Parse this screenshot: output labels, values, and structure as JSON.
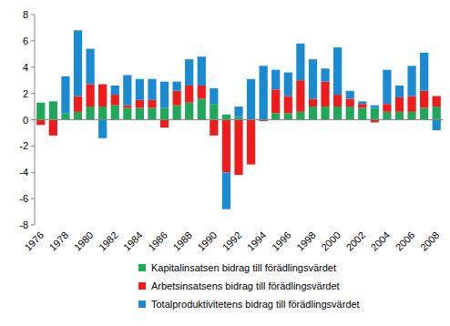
{
  "chart_data": {
    "type": "bar",
    "stacked": true,
    "grid": false,
    "legend": "bottom",
    "categories": [
      "1976",
      null,
      "1978",
      null,
      "1980",
      null,
      "1982",
      null,
      "1984",
      null,
      "1986",
      null,
      "1988",
      null,
      "1990",
      null,
      "1992",
      null,
      "1994",
      null,
      "1996",
      null,
      "1998",
      null,
      "2000",
      null,
      "2002",
      null,
      "2004",
      null,
      "2006",
      null,
      "2008"
    ],
    "ylim": [
      -8,
      8
    ],
    "yticks": [
      -8,
      -6,
      -4,
      -2,
      0,
      2,
      4,
      6,
      8
    ],
    "series": [
      {
        "name": "Kapitalinsatsen bidrag till förädlingsvärdet",
        "color": "#1fa85a",
        "values": [
          1.3,
          1.4,
          0.5,
          0.6,
          1.0,
          1.0,
          1.1,
          0.9,
          0.9,
          0.9,
          0.9,
          1.1,
          1.3,
          1.6,
          1.2,
          0.4,
          0.2,
          0,
          0,
          0.5,
          0.5,
          0.6,
          1.0,
          1.0,
          1.0,
          1.0,
          0.9,
          0.9,
          0.6,
          0.6,
          0.6,
          0.9,
          1.0
        ]
      },
      {
        "name": "Arbetsinsatsens bidrag till förädlingsvärdet",
        "color": "#ee1c1c",
        "values": [
          -0.4,
          -1.2,
          0,
          1.2,
          1.7,
          1.7,
          0.8,
          0.2,
          0.6,
          0.6,
          -0.6,
          1.1,
          1.3,
          1.0,
          -1.2,
          -4.0,
          -4.2,
          -3.4,
          -0.1,
          1.8,
          1.3,
          2.4,
          0.6,
          1.9,
          0.9,
          0.6,
          0.3,
          -0.2,
          0.6,
          1.1,
          1.2,
          1.3,
          0.8
        ]
      },
      {
        "name": "Totalproduktivitetens bidrag till förädlingsvärdet",
        "color": "#1a8bd1",
        "values": [
          0,
          0,
          2.8,
          5.0,
          2.7,
          -1.4,
          0.7,
          2.3,
          1.6,
          1.6,
          2.0,
          0.7,
          2.0,
          2.2,
          1.2,
          -2.8,
          0.8,
          3.1,
          4.1,
          1.5,
          1.8,
          2.8,
          3.0,
          1.0,
          3.6,
          0.6,
          0.2,
          0.2,
          2.6,
          0.9,
          2.3,
          2.9,
          -0.8
        ]
      }
    ]
  }
}
